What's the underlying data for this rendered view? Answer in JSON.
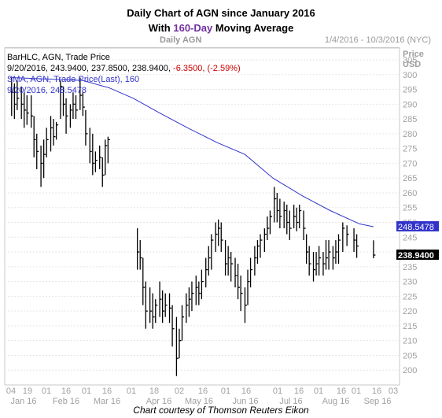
{
  "header": {
    "title_line1": "Daily Chart of AGN since January 2016",
    "title_line2_pre": "With ",
    "title_line2_highlight": "160-Day",
    "title_line2_post": " Moving Average",
    "panel_left": "Daily AGN",
    "panel_right": "1/4/2016 - 10/3/2016 (NYC)"
  },
  "legend": {
    "line1": "BarHLC, AGN, Trade Price",
    "line2_black": "9/20/2016, 243.9400, 237.8500, 238.9400, ",
    "line2_red": "-6.3500, (-2.59%)",
    "line3": "SMA, AGN, Trade Price(Last), 160",
    "line4": "9/20/2016, 248.5478"
  },
  "axis": {
    "price_label": "Price",
    "currency_label": "USD",
    "sma_tag": "248.5478",
    "last_tag": "238.9400"
  },
  "caption": "Chart courtesy of Thomson Reuters Eikon",
  "colors": {
    "bars": "#000000",
    "sma": "#3333cc",
    "negative": "#cc0000",
    "sma_tag_bg": "#3333cc",
    "last_tag_bg": "#000000"
  },
  "chart_data": {
    "type": "line",
    "ylim": [
      195,
      309
    ],
    "y_ticks": [
      200,
      205,
      210,
      215,
      220,
      225,
      230,
      235,
      240,
      245,
      250,
      255,
      260,
      265,
      270,
      275,
      280,
      285,
      290,
      295,
      300,
      305
    ],
    "x_tick_labels": [
      "04",
      "19",
      "01",
      "16",
      "01",
      "16",
      "01",
      "18",
      "02",
      "16",
      "01",
      "16",
      "01",
      "16",
      "01",
      "16",
      "01",
      "16",
      "03"
    ],
    "month_labels": [
      "Jan 16",
      "Feb 16",
      "Mar 16",
      "Apr 16",
      "May 16",
      "Jun 16",
      "Jul 16",
      "Aug 16",
      "Sep 16"
    ],
    "xlim": [
      "2016-01-04",
      "2016-10-03"
    ],
    "series": [
      {
        "name": "BarHLC, AGN, Trade Price",
        "kind": "hlc",
        "points": [
          [
            "2016-01-05",
            299,
            286,
            294
          ],
          [
            "2016-01-07",
            297,
            285,
            290
          ],
          [
            "2016-01-09",
            298,
            288,
            292
          ],
          [
            "2016-01-12",
            296,
            285,
            290
          ],
          [
            "2016-01-14",
            294,
            282,
            288
          ],
          [
            "2016-01-16",
            293,
            283,
            287
          ],
          [
            "2016-01-19",
            293,
            282,
            286
          ],
          [
            "2016-01-21",
            286,
            272,
            278
          ],
          [
            "2016-01-23",
            280,
            268,
            274
          ],
          [
            "2016-01-26",
            276,
            262,
            270
          ],
          [
            "2016-01-28",
            278,
            265,
            273
          ],
          [
            "2016-01-30",
            282,
            272,
            278
          ],
          [
            "2016-02-02",
            286,
            274,
            282
          ],
          [
            "2016-02-04",
            285,
            276,
            279
          ],
          [
            "2016-02-06",
            284,
            278,
            283
          ],
          [
            "2016-02-09",
            298,
            285,
            296
          ],
          [
            "2016-02-11",
            296,
            286,
            290
          ],
          [
            "2016-02-13",
            292,
            280,
            286
          ],
          [
            "2016-02-16",
            290,
            282,
            288
          ],
          [
            "2016-02-18",
            294,
            285,
            290
          ],
          [
            "2016-02-20",
            293,
            285,
            288
          ],
          [
            "2016-02-23",
            299,
            288,
            293
          ],
          [
            "2016-02-25",
            294,
            286,
            289
          ],
          [
            "2016-02-27",
            288,
            276,
            280
          ],
          [
            "2016-03-01",
            282,
            270,
            274
          ],
          [
            "2016-03-03",
            280,
            266,
            270
          ],
          [
            "2016-03-05",
            274,
            267,
            271
          ],
          [
            "2016-03-08",
            276,
            268,
            272
          ],
          [
            "2016-03-10",
            272,
            262,
            266
          ],
          [
            "2016-03-12",
            278,
            266,
            276
          ],
          [
            "2016-03-14",
            279,
            270,
            278
          ],
          [
            "2016-04-04",
            248,
            234,
            240
          ],
          [
            "2016-04-06",
            244,
            234,
            238
          ],
          [
            "2016-04-08",
            238,
            222,
            228
          ],
          [
            "2016-04-10",
            230,
            214,
            220
          ],
          [
            "2016-04-13",
            228,
            216,
            220
          ],
          [
            "2016-04-15",
            226,
            214,
            218
          ],
          [
            "2016-04-17",
            224,
            216,
            222
          ],
          [
            "2016-04-20",
            230,
            218,
            224
          ],
          [
            "2016-04-22",
            227,
            216,
            220
          ],
          [
            "2016-04-24",
            226,
            218,
            222
          ],
          [
            "2016-04-27",
            226,
            216,
            221
          ],
          [
            "2016-04-29",
            222,
            208,
            214
          ],
          [
            "2016-05-02",
            218,
            198,
            204
          ],
          [
            "2016-05-04",
            214,
            204,
            210
          ],
          [
            "2016-05-06",
            222,
            210,
            218
          ],
          [
            "2016-05-09",
            226,
            216,
            222
          ],
          [
            "2016-05-11",
            228,
            218,
            224
          ],
          [
            "2016-05-13",
            230,
            220,
            226
          ],
          [
            "2016-05-16",
            232,
            222,
            228
          ],
          [
            "2016-05-18",
            230,
            222,
            226
          ],
          [
            "2016-05-20",
            234,
            224,
            230
          ],
          [
            "2016-05-23",
            238,
            228,
            234
          ],
          [
            "2016-05-25",
            242,
            232,
            238
          ],
          [
            "2016-05-27",
            246,
            234,
            244
          ],
          [
            "2016-05-30",
            250,
            240,
            246
          ],
          [
            "2016-06-01",
            251,
            242,
            248
          ],
          [
            "2016-06-03",
            250,
            240,
            244
          ],
          [
            "2016-06-06",
            244,
            232,
            236
          ],
          [
            "2016-06-08",
            242,
            232,
            238
          ],
          [
            "2016-06-10",
            240,
            230,
            236
          ],
          [
            "2016-06-13",
            238,
            228,
            232
          ],
          [
            "2016-06-15",
            236,
            224,
            228
          ],
          [
            "2016-06-17",
            232,
            220,
            226
          ],
          [
            "2016-06-20",
            228,
            216,
            222
          ],
          [
            "2016-06-22",
            234,
            222,
            230
          ],
          [
            "2016-06-24",
            238,
            228,
            234
          ],
          [
            "2016-06-27",
            242,
            232,
            238
          ],
          [
            "2016-06-29",
            244,
            236,
            242
          ],
          [
            "2016-07-01",
            246,
            238,
            244
          ],
          [
            "2016-07-04",
            248,
            240,
            246
          ],
          [
            "2016-07-06",
            252,
            244,
            248
          ],
          [
            "2016-07-08",
            254,
            246,
            252
          ],
          [
            "2016-07-11",
            262,
            250,
            258
          ],
          [
            "2016-07-13",
            260,
            250,
            254
          ],
          [
            "2016-07-15",
            258,
            248,
            252
          ],
          [
            "2016-07-18",
            257,
            248,
            254
          ],
          [
            "2016-07-20",
            256,
            246,
            250
          ],
          [
            "2016-07-22",
            254,
            244,
            248
          ],
          [
            "2016-07-25",
            256,
            248,
            252
          ],
          [
            "2016-07-27",
            255,
            247,
            250
          ],
          [
            "2016-07-29",
            256,
            248,
            254
          ],
          [
            "2016-08-01",
            254,
            244,
            248
          ],
          [
            "2016-08-03",
            246,
            236,
            240
          ],
          [
            "2016-08-05",
            242,
            232,
            236
          ],
          [
            "2016-08-08",
            240,
            230,
            234
          ],
          [
            "2016-08-10",
            240,
            232,
            236
          ],
          [
            "2016-08-12",
            242,
            232,
            238
          ],
          [
            "2016-08-15",
            240,
            232,
            236
          ],
          [
            "2016-08-17",
            244,
            234,
            238
          ],
          [
            "2016-08-19",
            244,
            234,
            240
          ],
          [
            "2016-08-22",
            242,
            234,
            238
          ],
          [
            "2016-08-24",
            244,
            236,
            240
          ],
          [
            "2016-08-26",
            246,
            236,
            244
          ],
          [
            "2016-08-29",
            250,
            240,
            248
          ],
          [
            "2016-09-01",
            249,
            242,
            246
          ],
          [
            "2016-09-06",
            248,
            240,
            244
          ],
          [
            "2016-09-08",
            246,
            238,
            242
          ],
          [
            "2016-09-20",
            243.94,
            237.85,
            238.94
          ]
        ]
      },
      {
        "name": "SMA, AGN, Trade Price(Last), 160",
        "kind": "line",
        "x": [
          "2016-01-04",
          "2016-01-31",
          "2016-02-25",
          "2016-03-15",
          "2016-04-01",
          "2016-04-20",
          "2016-05-10",
          "2016-05-31",
          "2016-06-20",
          "2016-07-10",
          "2016-07-31",
          "2016-08-20",
          "2016-09-10",
          "2016-09-20"
        ],
        "values": [
          299,
          298.5,
          298,
          295.5,
          292,
          287,
          282,
          277,
          273,
          265,
          259,
          254,
          249.5,
          248.5478
        ]
      }
    ]
  }
}
